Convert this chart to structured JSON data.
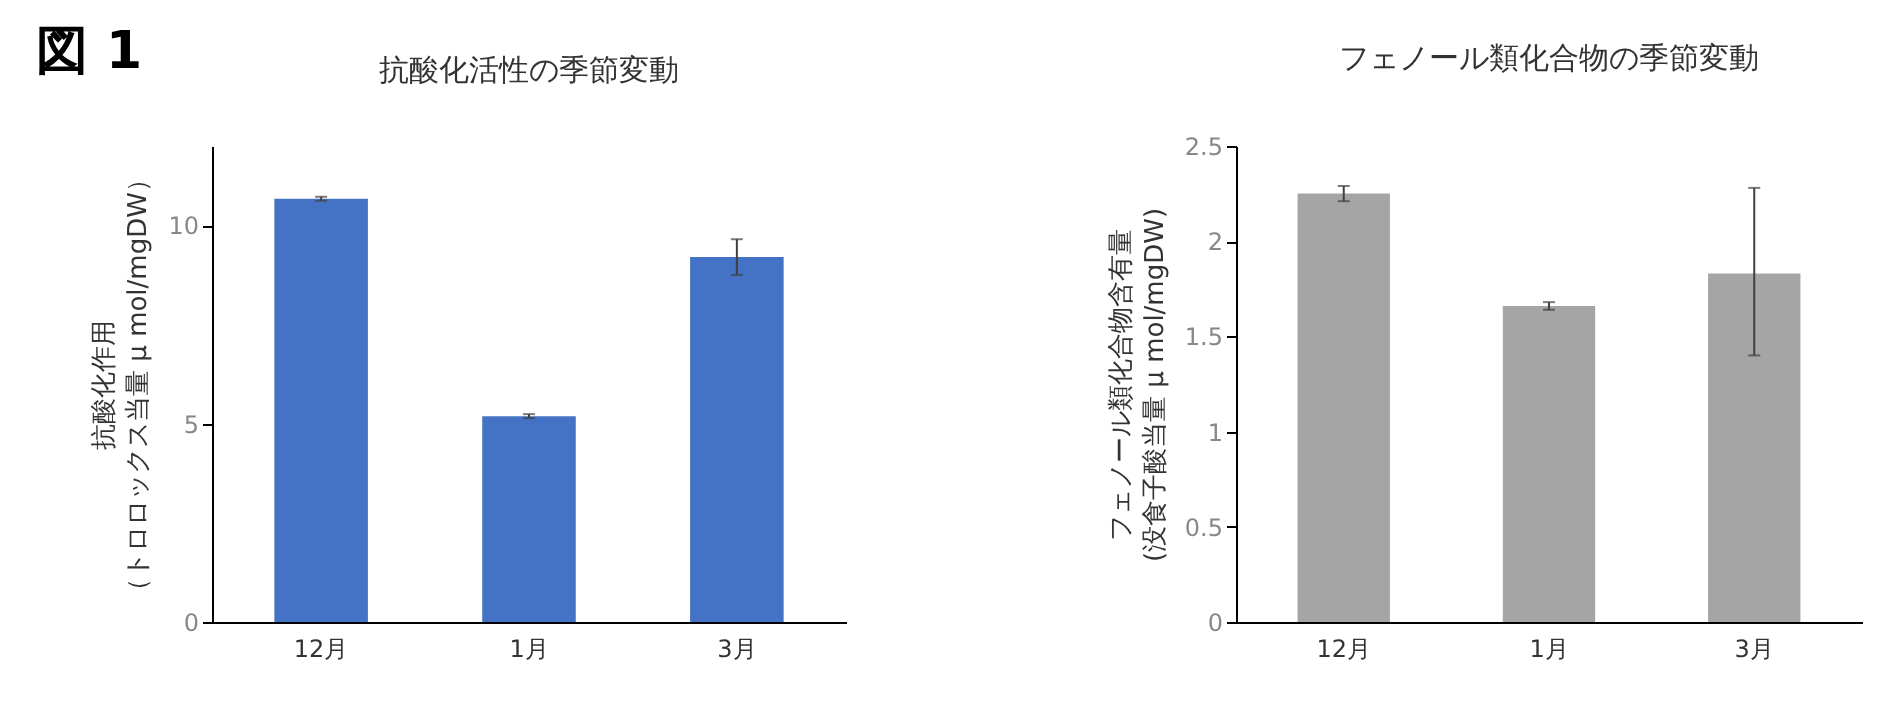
{
  "chart_data": [
    {
      "type": "bar",
      "title": "抗酸化活性の季節変動",
      "ylabel": "抗酸化作用（トロロックス当量 μ mol/mgDW）",
      "annotations": [
        "図 1"
      ],
      "categories": [
        "12月",
        "1月",
        "3月"
      ],
      "values": [
        10.67,
        5.19,
        9.2
      ],
      "errors": [
        0.05,
        0.05,
        0.45
      ],
      "color": "#4472c4",
      "ylim": [
        0,
        12
      ],
      "yticks": [
        0,
        5,
        10
      ],
      "grid": false
    },
    {
      "type": "bar",
      "title": "フェノール類化合物の季節変動",
      "ylabel": "フェノール類化合物含有量(没食子酸当量 μ mol/mgDW)",
      "categories": [
        "12月",
        "1月",
        "3月"
      ],
      "values": [
        2.25,
        1.66,
        1.83
      ],
      "errors": [
        0.04,
        0.02,
        [
          1.4,
          2.28
        ]
      ],
      "color": "#a5a5a5",
      "ylim": [
        0,
        2.5
      ],
      "yticks": [
        0,
        0.5,
        1,
        1.5,
        2,
        2.5
      ],
      "grid": false
    }
  ]
}
